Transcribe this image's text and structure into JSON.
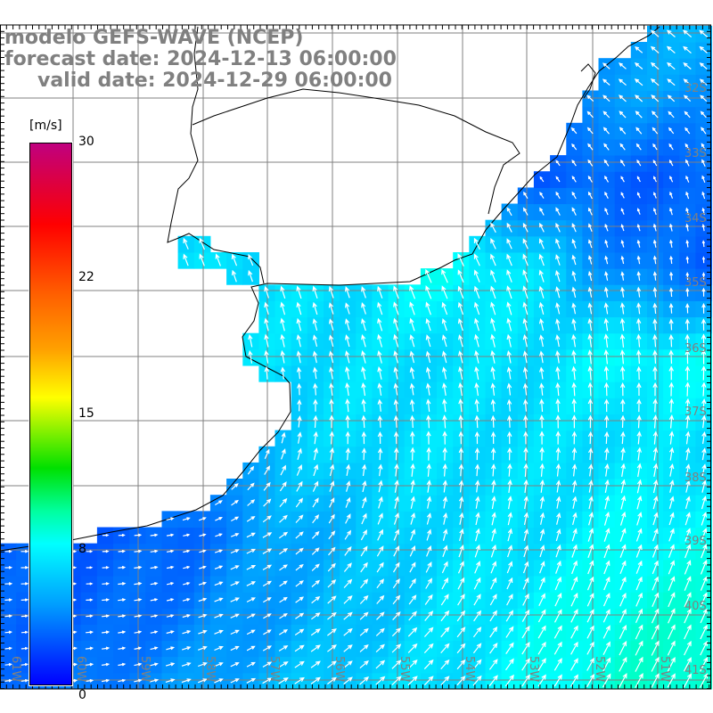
{
  "header": {
    "model": "modelo GEFS-WAVE (NCEP)",
    "forecast": "forecast date: 2024-12-13 06:00:00",
    "valid": "valid date: 2024-12-29 06:00:00"
  },
  "colorbar": {
    "unit": "[m/s]",
    "labels": [
      "30",
      "22",
      "15",
      "8",
      "0"
    ],
    "range": [
      0,
      30
    ]
  },
  "latitudes": [
    "32S",
    "33S",
    "34S",
    "35S",
    "36S",
    "37S",
    "38S",
    "39S",
    "40S",
    "41S"
  ],
  "longitudes": [
    "61W",
    "60W",
    "59W",
    "58W",
    "57W",
    "56W",
    "55W",
    "54W",
    "53W",
    "52W",
    "51W"
  ],
  "colors": {
    "land": "#ffffff",
    "grid": "#808080",
    "coast": "#000000",
    "arrow": "#ffffff"
  }
}
